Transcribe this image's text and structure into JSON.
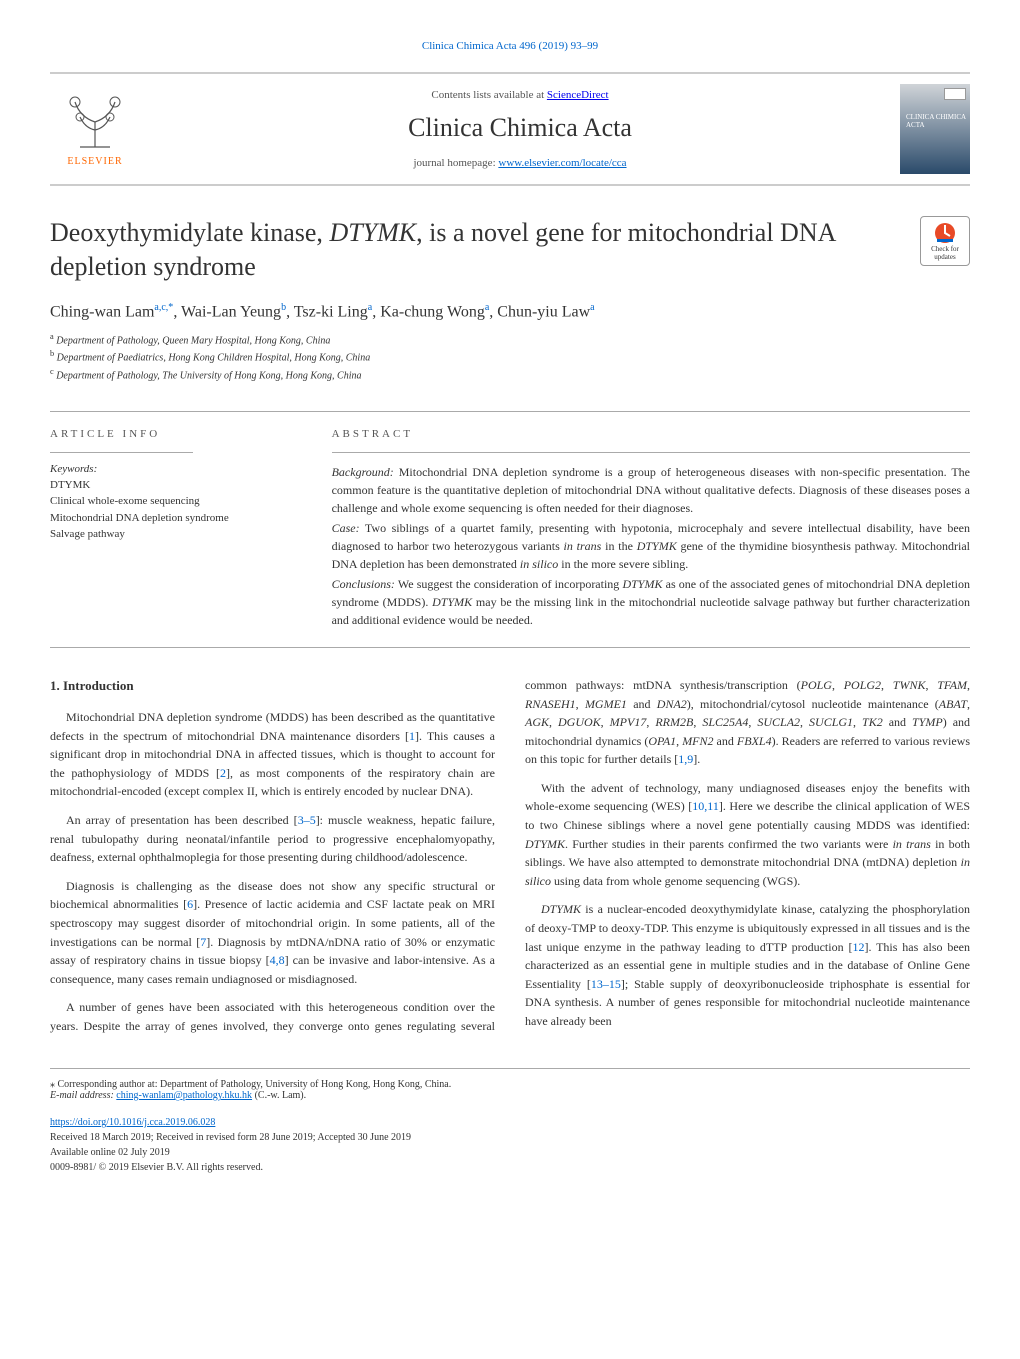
{
  "top_link": "Clinica Chimica Acta 496 (2019) 93–99",
  "header": {
    "contents_prefix": "Contents lists available at ",
    "contents_link": "ScienceDirect",
    "journal_name": "Clinica Chimica Acta",
    "homepage_prefix": "journal homepage: ",
    "homepage_link": "www.elsevier.com/locate/cca",
    "elsevier_label": "ELSEVIER",
    "cover_text": "CLINICA CHIMICA ACTA"
  },
  "article": {
    "title_part1": "Deoxythymidylate kinase, ",
    "title_em": "DTYMK",
    "title_part2": ", is a novel gene for mitochondrial DNA depletion syndrome",
    "updates_label": "Check for updates"
  },
  "authors_html": "Ching-wan Lam<sup>a,c,*</sup>, Wai-Lan Yeung<sup>b</sup>, Tsz-ki Ling<sup>a</sup>, Ka-chung Wong<sup>a</sup>, Chun-yiu Law<sup>a</sup>",
  "affiliations": {
    "a": "Department of Pathology, Queen Mary Hospital, Hong Kong, China",
    "b": "Department of Paediatrics, Hong Kong Children Hospital, Hong Kong, China",
    "c": "Department of Pathology, The University of Hong Kong, Hong Kong, China"
  },
  "article_info": {
    "head": "ARTICLE INFO",
    "keywords_label": "Keywords:",
    "keywords": [
      "DTYMK",
      "Clinical whole-exome sequencing",
      "Mitochondrial DNA depletion syndrome",
      "Salvage pathway"
    ]
  },
  "abstract": {
    "head": "ABSTRACT",
    "background_label": "Background:",
    "background": " Mitochondrial DNA depletion syndrome is a group of heterogeneous diseases with non-specific presentation. The common feature is the quantitative depletion of mitochondrial DNA without qualitative defects. Diagnosis of these diseases poses a challenge and whole exome sequencing is often needed for their diagnoses.",
    "case_label": "Case:",
    "case": " Two siblings of a quartet family, presenting with hypotonia, microcephaly and severe intellectual disability, have been diagnosed to harbor two heterozygous variants in trans in the DTYMK gene of the thymidine biosynthesis pathway. Mitochondrial DNA depletion has been demonstrated in silico in the more severe sibling.",
    "conclusions_label": "Conclusions:",
    "conclusions": " We suggest the consideration of incorporating DTYMK as one of the associated genes of mitochondrial DNA depletion syndrome (MDDS). DTYMK may be the missing link in the mitochondrial nucleotide salvage pathway but further characterization and additional evidence would be needed."
  },
  "intro": {
    "heading": "1. Introduction",
    "p1": "Mitochondrial DNA depletion syndrome (MDDS) has been described as the quantitative defects in the spectrum of mitochondrial DNA maintenance disorders [1]. This causes a significant drop in mitochondrial DNA in affected tissues, which is thought to account for the pathophysiology of MDDS [2], as most components of the respiratory chain are mitochondrial-encoded (except complex II, which is entirely encoded by nuclear DNA).",
    "p2": "An array of presentation has been described [3–5]: muscle weakness, hepatic failure, renal tubulopathy during neonatal/infantile period to progressive encephalomyopathy, deafness, external ophthalmoplegia for those presenting during childhood/adolescence.",
    "p3": "Diagnosis is challenging as the disease does not show any specific structural or biochemical abnormalities [6]. Presence of lactic acidemia and CSF lactate peak on MRI spectroscopy may suggest disorder of mitochondrial origin. In some patients, all of the investigations can be normal [7]. Diagnosis by mtDNA/nDNA ratio of 30% or enzymatic assay of respiratory chains in tissue biopsy [4,8] can be invasive and labor-intensive. As a consequence, many cases remain undiagnosed or misdiagnosed.",
    "p4": "A number of genes have been associated with this heterogeneous condition over the years. Despite the array of genes involved, they converge onto genes regulating several common pathways: mtDNA synthesis/transcription (POLG, POLG2, TWNK, TFAM, RNASEH1, MGME1 and DNA2), mitochondrial/cytosol nucleotide maintenance (ABAT, AGK, DGUOK, MPV17, RRM2B, SLC25A4, SUCLA2, SUCLG1, TK2 and TYMP) and mitochondrial dynamics (OPA1, MFN2 and FBXL4). Readers are referred to various reviews on this topic for further details [1,9].",
    "p5": "With the advent of technology, many undiagnosed diseases enjoy the benefits with whole-exome sequencing (WES) [10,11]. Here we describe the clinical application of WES to two Chinese siblings where a novel gene potentially causing MDDS was identified: DTYMK. Further studies in their parents confirmed the two variants were in trans in both siblings. We have also attempted to demonstrate mitochondrial DNA (mtDNA) depletion in silico using data from whole genome sequencing (WGS).",
    "p6": "DTYMK is a nuclear-encoded deoxythymidylate kinase, catalyzing the phosphorylation of deoxy-TMP to deoxy-TDP. This enzyme is ubiquitously expressed in all tissues and is the last unique enzyme in the pathway leading to dTTP production [12]. This has also been characterized as an essential gene in multiple studies and in the database of Online Gene Essentiality [13–15]; Stable supply of deoxyribonucleoside triphosphate is essential for DNA synthesis. A number of genes responsible for mitochondrial nucleotide maintenance have already been"
  },
  "footer": {
    "corr_label": "⁎ Corresponding author at: Department of Pathology, University of Hong Kong, Hong Kong, China.",
    "email_label": "E-mail address: ",
    "email": "ching-wanlam@pathology.hku.hk",
    "email_name": " (C.-w. Lam).",
    "doi": "https://doi.org/10.1016/j.cca.2019.06.028",
    "received": "Received 18 March 2019; Received in revised form 28 June 2019; Accepted 30 June 2019",
    "available": "Available online 02 July 2019",
    "copyright": "0009-8981/ © 2019 Elsevier B.V. All rights reserved."
  },
  "colors": {
    "link": "#0066cc",
    "elsevier_orange": "#ff6600",
    "rule": "#aaaaaa"
  }
}
